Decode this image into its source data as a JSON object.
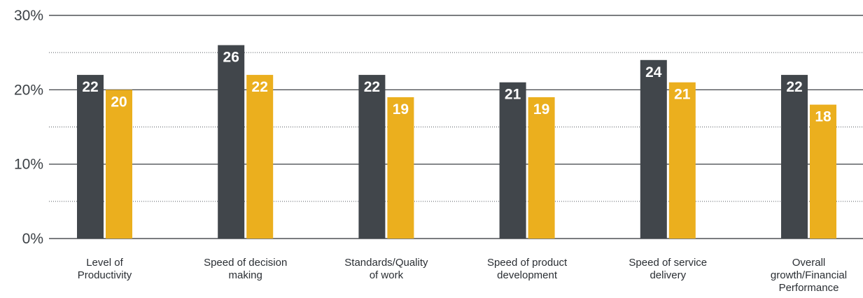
{
  "chart_data": {
    "type": "bar",
    "categories": [
      [
        "Level of",
        "Productivity"
      ],
      [
        "Speed of decision",
        "making"
      ],
      [
        "Standards/Quality",
        "of work"
      ],
      [
        "Speed of product",
        "development"
      ],
      [
        "Speed of service",
        "delivery"
      ],
      [
        "Overall",
        "growth/Financial",
        "Performance"
      ]
    ],
    "series": [
      {
        "values": [
          22,
          26,
          22,
          21,
          24,
          22
        ],
        "color": "#41464b"
      },
      {
        "values": [
          20,
          22,
          19,
          19,
          21,
          18
        ],
        "color": "#ebaf1e"
      }
    ],
    "ylim": [
      0,
      30
    ],
    "yticks": [
      {
        "value": 0,
        "label": "0%"
      },
      {
        "value": 10,
        "label": "10%"
      },
      {
        "value": 20,
        "label": "20%"
      },
      {
        "value": 30,
        "label": "30%"
      }
    ],
    "minor_gridlines": [
      5,
      15,
      25
    ],
    "grid": true,
    "legend": "none"
  }
}
